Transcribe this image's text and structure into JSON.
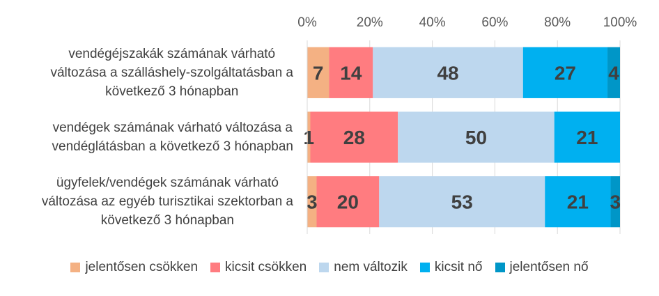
{
  "chart_data": {
    "type": "bar",
    "orientation": "horizontal",
    "stacked": true,
    "percent": true,
    "x_ticks": [
      "0%",
      "20%",
      "40%",
      "60%",
      "80%",
      "100%"
    ],
    "xlim": [
      0,
      100
    ],
    "legend_position": "bottom",
    "categories": [
      "vendégéjszakák számának várható változása a szálláshely-szolgáltatásban a következő 3 hónapban",
      "vendégek számának várható változása a vendéglátásban a következő 3 hónapban",
      "ügyfelek/vendégek számának várható változása az egyéb turisztikai szektorban a következő 3 hónapban"
    ],
    "category_lines": [
      [
        "vendégéjszakák számának várható",
        "változása a szálláshely-szolgáltatásban a",
        "következő 3 hónapban"
      ],
      [
        "vendégek számának várható változása a",
        "vendéglátásban a következő 3 hónapban"
      ],
      [
        "ügyfelek/vendégek számának várható",
        "változása az egyéb turisztikai szektorban a",
        "következő 3 hónapban"
      ]
    ],
    "series": [
      {
        "name": "jelentősen csökken",
        "color": "#f4b183",
        "values": [
          7,
          1,
          3
        ]
      },
      {
        "name": "kicsit csökken",
        "color": "#ff7c80",
        "values": [
          14,
          28,
          20
        ]
      },
      {
        "name": "nem változik",
        "color": "#bdd7ee",
        "values": [
          48,
          50,
          53
        ]
      },
      {
        "name": "kicsit nő",
        "color": "#00b0f0",
        "values": [
          27,
          21,
          21
        ]
      },
      {
        "name": "jelentősen nő",
        "color": "#0096c7",
        "values": [
          4,
          0,
          3
        ]
      }
    ]
  }
}
